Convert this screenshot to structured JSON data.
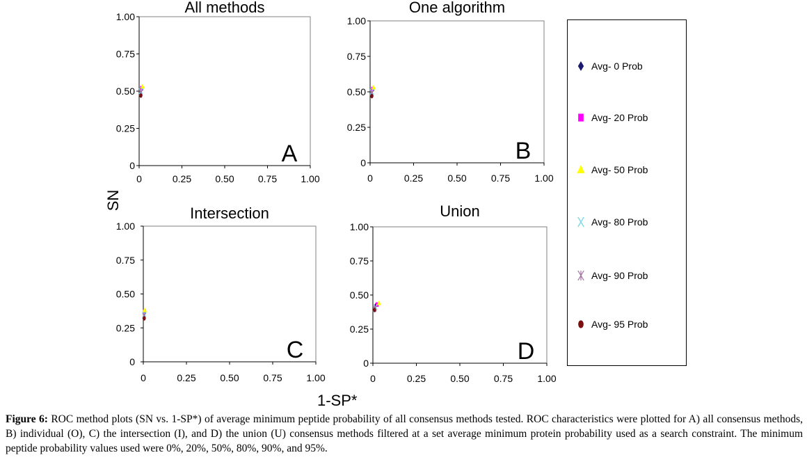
{
  "figure": {
    "y_axis_label": "SN",
    "x_axis_label": "1-SP*",
    "caption_lead": "Figure 6:",
    "caption_text": " ROC method plots (SN vs. 1-SP*) of average minimum peptide probability of all consensus methods tested. ROC characteristics were plotted for A) all consensus methods, B) individual (O), C) the intersection (I),  and D) the union (U) consensus methods filtered at a set average minimum protein probability used as a search constraint. The minimum peptide probability values used were 0%, 20%, 50%, 80%, 90%, and 95%."
  },
  "legend": [
    {
      "label": "Avg- 0 Prob",
      "color": "#1a1a6e",
      "marker": "diamond"
    },
    {
      "label": "Avg- 20 Prob",
      "color": "#ff00ff",
      "marker": "square"
    },
    {
      "label": "Avg- 50 Prob",
      "color": "#ffff00",
      "marker": "triangle"
    },
    {
      "label": "Avg- 80 Prob",
      "color": "#7fd8e8",
      "marker": "x"
    },
    {
      "label": "Avg- 90 Prob",
      "color": "#a070a0",
      "marker": "star"
    },
    {
      "label": "Avg- 95 Prob",
      "color": "#7a1010",
      "marker": "circle"
    }
  ],
  "chart_data": [
    {
      "type": "scatter",
      "title": "All methods",
      "panel_letter": "A",
      "xlim": [
        0,
        1
      ],
      "ylim": [
        0,
        1
      ],
      "xticks": [
        "0",
        "0.25",
        "0.50",
        "0.75",
        "1.00"
      ],
      "yticks": [
        "0",
        "0.25",
        "0.50",
        "0.75",
        "1.00"
      ],
      "series": [
        {
          "name": "Avg- 0 Prob",
          "x": [
            0.01
          ],
          "y": [
            0.51
          ]
        },
        {
          "name": "Avg- 20 Prob",
          "x": [
            0.015
          ],
          "y": [
            0.52
          ]
        },
        {
          "name": "Avg- 50 Prob",
          "x": [
            0.02
          ],
          "y": [
            0.53
          ]
        },
        {
          "name": "Avg- 80 Prob",
          "x": [
            0.01
          ],
          "y": [
            0.5
          ]
        },
        {
          "name": "Avg- 90 Prob",
          "x": [
            0.01
          ],
          "y": [
            0.49
          ]
        },
        {
          "name": "Avg- 95 Prob",
          "x": [
            0.01
          ],
          "y": [
            0.47
          ]
        }
      ]
    },
    {
      "type": "scatter",
      "title": "One algorithm",
      "panel_letter": "B",
      "xlim": [
        0,
        1
      ],
      "ylim": [
        0,
        1
      ],
      "xticks": [
        "0",
        "0.25",
        "0.50",
        "0.75",
        "1.00"
      ],
      "yticks": [
        "0",
        "0.25",
        "0.50",
        "0.75",
        "1.00"
      ],
      "series": [
        {
          "name": "Avg- 0 Prob",
          "x": [
            0.01
          ],
          "y": [
            0.51
          ]
        },
        {
          "name": "Avg- 20 Prob",
          "x": [
            0.015
          ],
          "y": [
            0.52
          ]
        },
        {
          "name": "Avg- 50 Prob",
          "x": [
            0.02
          ],
          "y": [
            0.53
          ]
        },
        {
          "name": "Avg- 80 Prob",
          "x": [
            0.01
          ],
          "y": [
            0.5
          ]
        },
        {
          "name": "Avg- 90 Prob",
          "x": [
            0.01
          ],
          "y": [
            0.49
          ]
        },
        {
          "name": "Avg- 95 Prob",
          "x": [
            0.01
          ],
          "y": [
            0.47
          ]
        }
      ]
    },
    {
      "type": "scatter",
      "title": "Intersection",
      "panel_letter": "C",
      "xlim": [
        0,
        1
      ],
      "ylim": [
        0,
        1
      ],
      "xticks": [
        "0",
        "0.25",
        "0.50",
        "0.75",
        "1.00"
      ],
      "yticks": [
        "0",
        "0.25",
        "0.50",
        "0.75",
        "1.00"
      ],
      "series": [
        {
          "name": "Avg- 0 Prob",
          "x": [
            0.005
          ],
          "y": [
            0.36
          ]
        },
        {
          "name": "Avg- 20 Prob",
          "x": [
            0.007
          ],
          "y": [
            0.37
          ]
        },
        {
          "name": "Avg- 50 Prob",
          "x": [
            0.008
          ],
          "y": [
            0.38
          ]
        },
        {
          "name": "Avg- 80 Prob",
          "x": [
            0.005
          ],
          "y": [
            0.35
          ]
        },
        {
          "name": "Avg- 90 Prob",
          "x": [
            0.005
          ],
          "y": [
            0.34
          ]
        },
        {
          "name": "Avg- 95 Prob",
          "x": [
            0.005
          ],
          "y": [
            0.32
          ]
        }
      ]
    },
    {
      "type": "scatter",
      "title": "Union",
      "panel_letter": "D",
      "xlim": [
        0,
        1
      ],
      "ylim": [
        0,
        1
      ],
      "xticks": [
        "0",
        "0.25",
        "0.50",
        "0.75",
        "1.00"
      ],
      "yticks": [
        "0",
        "0.25",
        "0.50",
        "0.75",
        "1.00"
      ],
      "series": [
        {
          "name": "Avg- 0 Prob",
          "x": [
            0.015
          ],
          "y": [
            0.42
          ]
        },
        {
          "name": "Avg- 20 Prob",
          "x": [
            0.025
          ],
          "y": [
            0.43
          ]
        },
        {
          "name": "Avg- 50 Prob",
          "x": [
            0.035
          ],
          "y": [
            0.44
          ]
        },
        {
          "name": "Avg- 80 Prob",
          "x": [
            0.015
          ],
          "y": [
            0.41
          ]
        },
        {
          "name": "Avg- 90 Prob",
          "x": [
            0.01
          ],
          "y": [
            0.4
          ]
        },
        {
          "name": "Avg- 95 Prob",
          "x": [
            0.01
          ],
          "y": [
            0.39
          ]
        }
      ]
    }
  ]
}
